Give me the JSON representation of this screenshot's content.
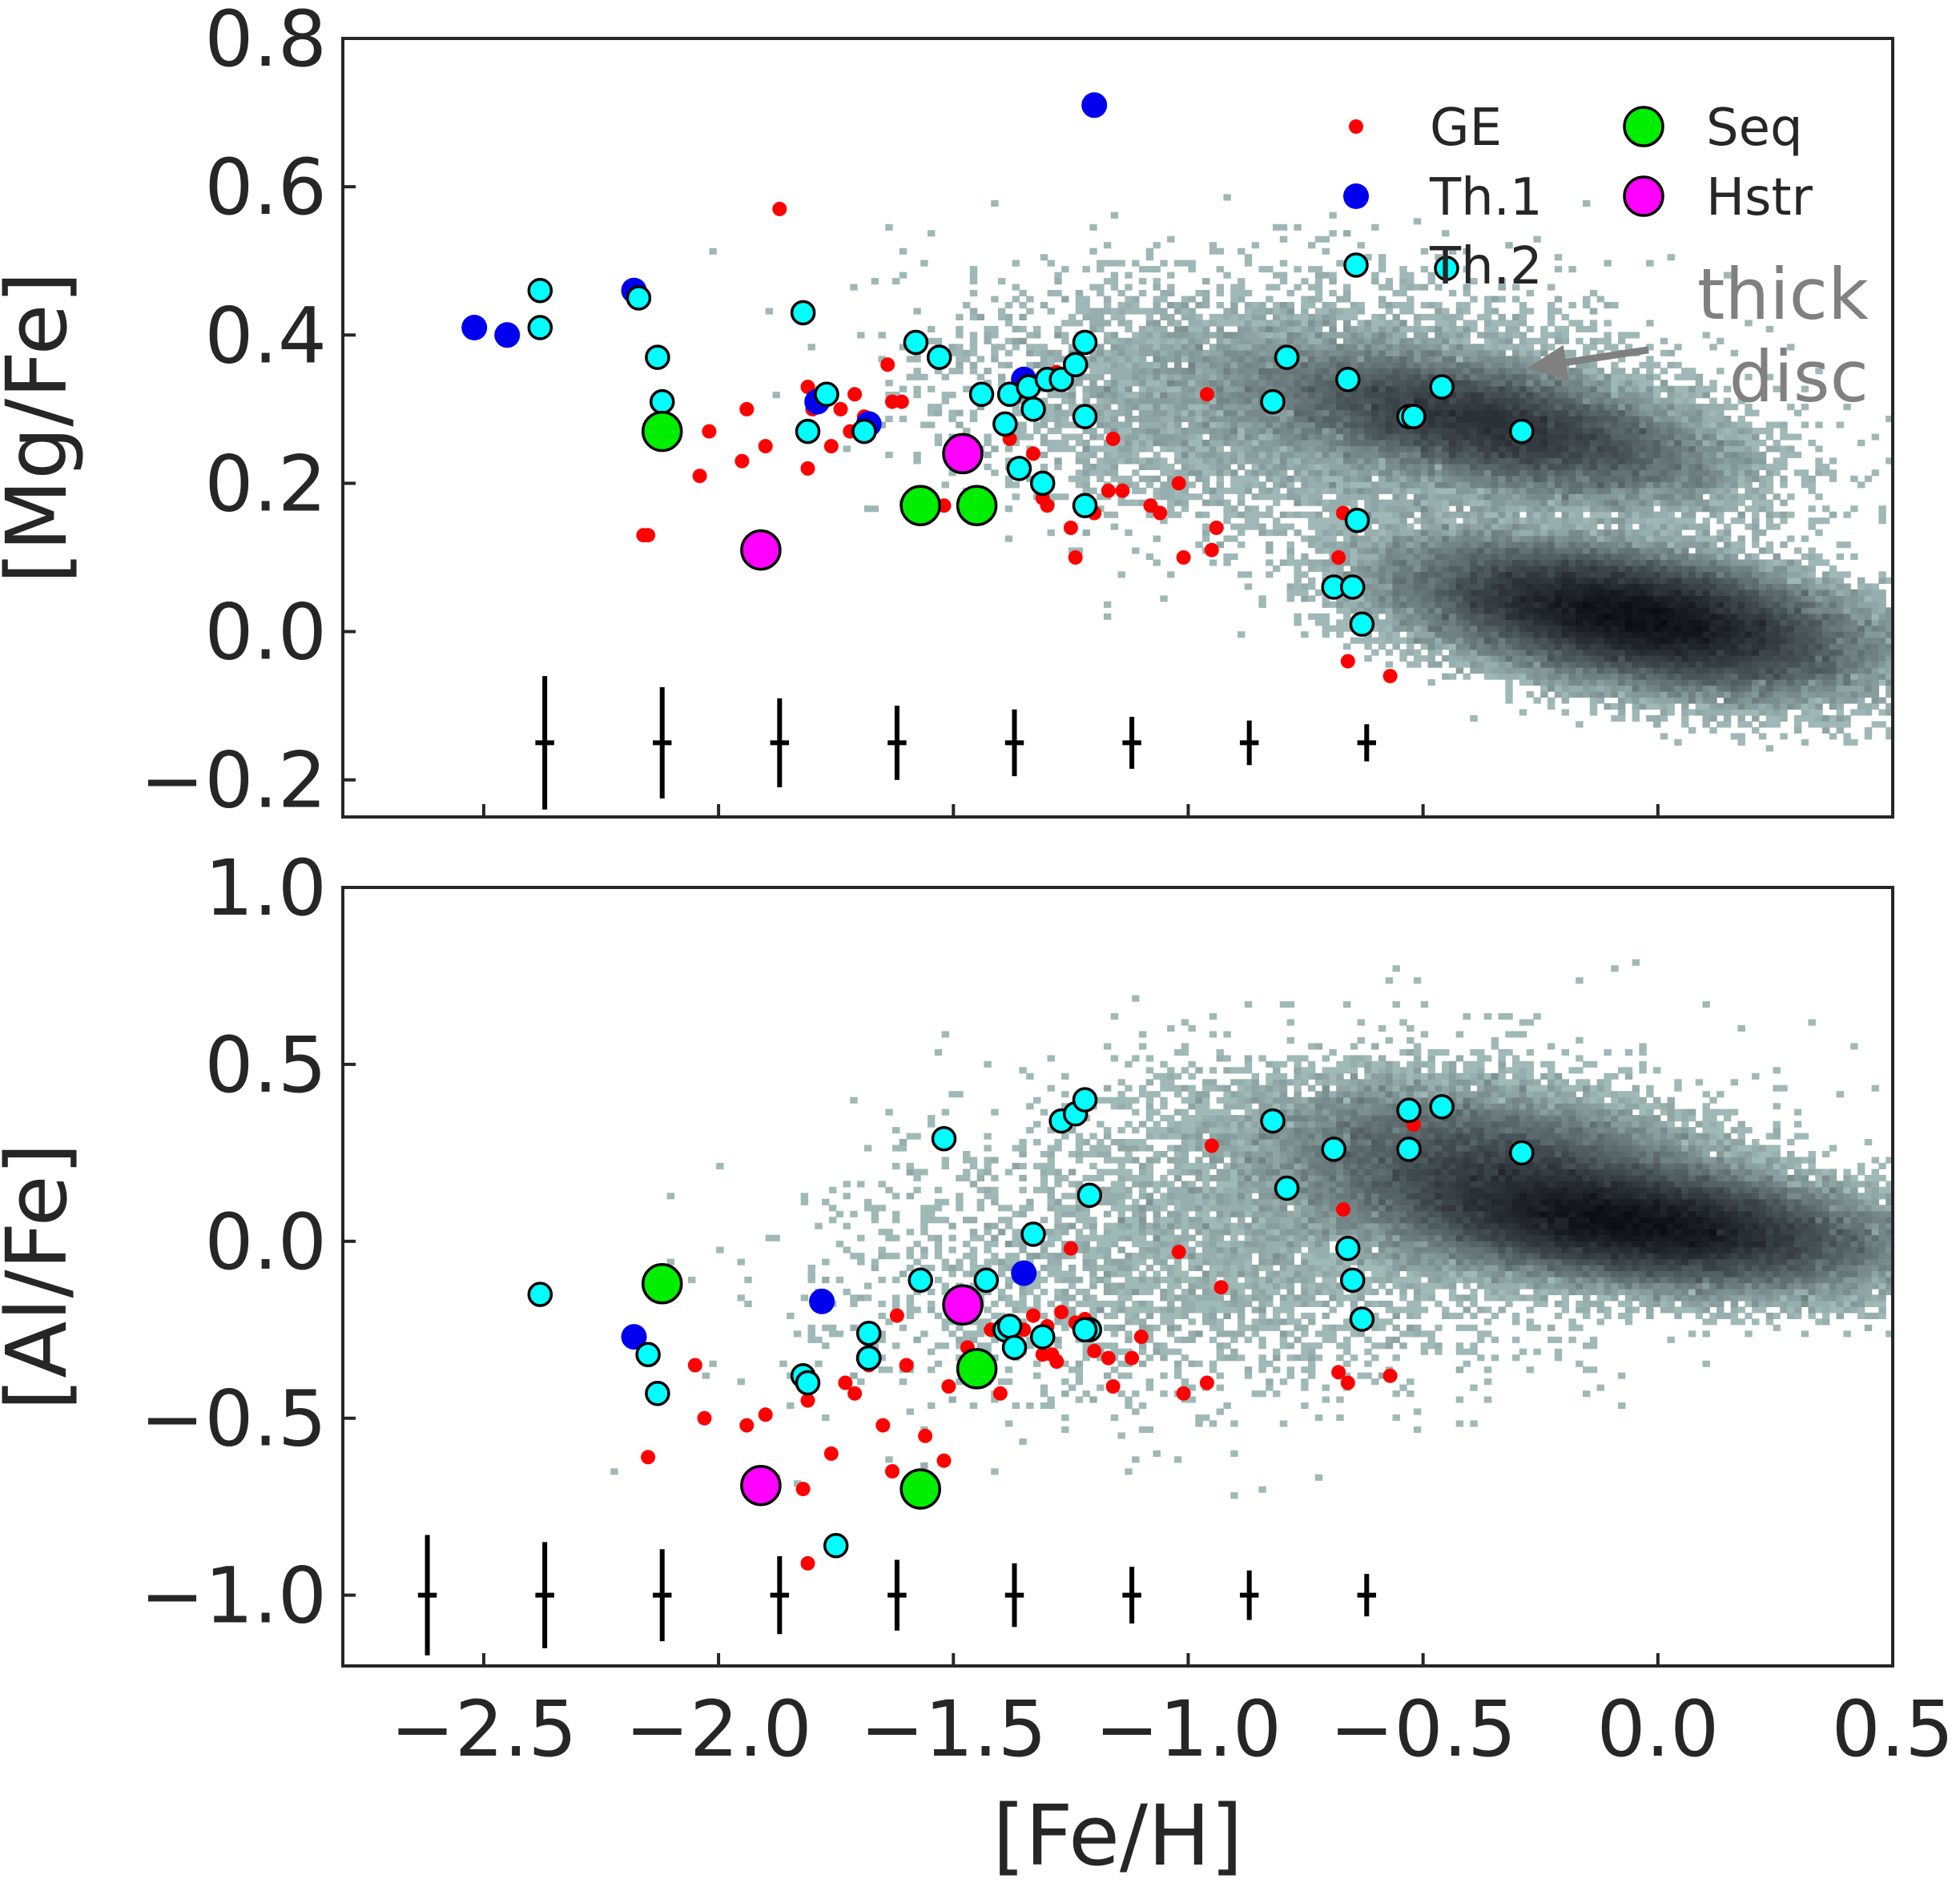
{
  "chart_data": [
    {
      "type": "scatter",
      "panel": "top",
      "xlabel": "[Fe/H]",
      "ylabel": "[Mg/Fe]",
      "xlim": [
        -2.8,
        0.5
      ],
      "ylim": [
        -0.25,
        0.8
      ],
      "xticks": [
        "−2.5",
        "−2.0",
        "−1.5",
        "−1.0",
        "−0.5",
        "0.0",
        "0.5"
      ],
      "yticks": [
        {
          "v": -0.2,
          "label": "−0.2"
        },
        {
          "v": 0.0,
          "label": "0.0"
        },
        {
          "v": 0.2,
          "label": "0.2"
        },
        {
          "v": 0.4,
          "label": "0.4"
        },
        {
          "v": 0.6,
          "label": "0.6"
        },
        {
          "v": 0.8,
          "label": "0.8"
        }
      ],
      "tick_labels_x_visible": false,
      "annotation": {
        "lines": [
          "thick",
          "disc"
        ],
        "arrow_to": [
          -0.28,
          0.355
        ],
        "arrow_from": [
          -0.02,
          0.38
        ]
      },
      "legend": {
        "placement": "top-right",
        "entries": [
          {
            "label": "GE",
            "series": "GE"
          },
          {
            "label": "Th.1",
            "series": "Th.1"
          },
          {
            "label": "Th.2",
            "series": "Th.2"
          },
          {
            "label": "Seq",
            "series": "Seq"
          },
          {
            "label": "Hstr",
            "series": "Hstr"
          }
        ]
      },
      "background_density": {
        "color_low": "#a9c4c2",
        "color_high": "#0a0a12",
        "components": [
          {
            "cx": -0.05,
            "cy": 0.02,
            "sx": 0.22,
            "sy": 0.045,
            "rho": -0.45,
            "w": 1.0
          },
          {
            "cx": -0.35,
            "cy": 0.28,
            "sx": 0.22,
            "sy": 0.045,
            "rho": -0.55,
            "w": 0.45
          },
          {
            "cx": -0.7,
            "cy": 0.3,
            "sx": 0.35,
            "sy": 0.08,
            "rho": -0.2,
            "w": 0.12
          }
        ]
      },
      "errorbars": [
        {
          "x": -2.37,
          "y": -0.15,
          "xerr": 0.02,
          "yerr": 0.09
        },
        {
          "x": -2.12,
          "y": -0.15,
          "xerr": 0.02,
          "yerr": 0.075
        },
        {
          "x": -1.87,
          "y": -0.15,
          "xerr": 0.02,
          "yerr": 0.06
        },
        {
          "x": -1.62,
          "y": -0.15,
          "xerr": 0.02,
          "yerr": 0.05
        },
        {
          "x": -1.37,
          "y": -0.15,
          "xerr": 0.02,
          "yerr": 0.045
        },
        {
          "x": -1.12,
          "y": -0.15,
          "xerr": 0.02,
          "yerr": 0.035
        },
        {
          "x": -0.87,
          "y": -0.15,
          "xerr": 0.02,
          "yerr": 0.03
        },
        {
          "x": -0.62,
          "y": -0.15,
          "xerr": 0.02,
          "yerr": 0.025
        }
      ],
      "series": [
        {
          "name": "GE",
          "color": "#ff0000",
          "edge": "none",
          "size": 9,
          "x": [
            -2.15,
            -2.16,
            -2.04,
            -2.02,
            -1.95,
            -1.94,
            -1.9,
            -1.87,
            -1.81,
            -1.81,
            -1.8,
            -1.76,
            -1.74,
            -1.72,
            -1.71,
            -1.69,
            -1.64,
            -1.63,
            -1.61,
            -1.52,
            -1.45,
            -1.38,
            -1.36,
            -1.35,
            -1.33,
            -1.31,
            -1.3,
            -1.28,
            -1.25,
            -1.24,
            -1.2,
            -1.17,
            -1.16,
            -1.14,
            -1.08,
            -1.06,
            -1.02,
            -1.01,
            -0.96,
            -0.95,
            -0.94,
            -0.68,
            -0.67,
            -0.66,
            -0.57
          ],
          "y": [
            0.13,
            0.13,
            0.21,
            0.27,
            0.23,
            0.3,
            0.25,
            0.57,
            0.22,
            0.33,
            0.3,
            0.25,
            0.3,
            0.27,
            0.32,
            0.29,
            0.36,
            0.31,
            0.31,
            0.17,
            0.17,
            0.26,
            0.22,
            0.22,
            0.24,
            0.18,
            0.17,
            0.35,
            0.14,
            0.1,
            0.16,
            0.19,
            0.26,
            0.19,
            0.17,
            0.16,
            0.2,
            0.1,
            0.32,
            0.11,
            0.14,
            0.1,
            0.16,
            -0.04,
            -0.06
          ]
        },
        {
          "name": "Th.1",
          "color": "#0000ee",
          "edge": "none",
          "size": 16,
          "x": [
            -2.52,
            -2.45,
            -2.18,
            -1.79,
            -1.68,
            -1.35,
            -1.2
          ],
          "y": [
            0.41,
            0.4,
            0.46,
            0.31,
            0.28,
            0.34,
            0.71
          ]
        },
        {
          "name": "Th.2",
          "color": "#00ffff",
          "edge": "#000000",
          "size": 14,
          "x": [
            -2.38,
            -2.38,
            -2.17,
            -2.13,
            -2.12,
            -1.82,
            -1.81,
            -1.77,
            -1.69,
            -1.58,
            -1.53,
            -1.44,
            -1.39,
            -1.38,
            -1.36,
            -1.34,
            -1.33,
            -1.31,
            -1.3,
            -1.27,
            -1.24,
            -1.22,
            -1.22,
            -1.22,
            -0.82,
            -0.79,
            -0.69,
            -0.66,
            -0.65,
            -0.64,
            -0.63,
            -0.53,
            -0.52,
            -0.46,
            -0.29,
            -0.45
          ],
          "y": [
            0.46,
            0.41,
            0.45,
            0.37,
            0.31,
            0.43,
            0.27,
            0.32,
            0.27,
            0.39,
            0.37,
            0.32,
            0.28,
            0.32,
            0.22,
            0.33,
            0.3,
            0.2,
            0.34,
            0.34,
            0.36,
            0.39,
            0.29,
            0.17,
            0.31,
            0.37,
            0.06,
            0.34,
            0.06,
            0.15,
            0.01,
            0.29,
            0.29,
            0.33,
            0.27,
            0.49
          ]
        },
        {
          "name": "Seq",
          "color": "#00ee00",
          "edge": "#000000",
          "size": 24,
          "x": [
            -2.12,
            -1.57,
            -1.45
          ],
          "y": [
            0.27,
            0.17,
            0.17
          ]
        },
        {
          "name": "Hstr",
          "color": "#ff00ff",
          "edge": "#000000",
          "size": 24,
          "x": [
            -1.91,
            -1.48
          ],
          "y": [
            0.11,
            0.24
          ]
        }
      ]
    },
    {
      "type": "scatter",
      "panel": "bottom",
      "xlabel": "[Fe/H]",
      "ylabel": "[Al/Fe]",
      "xlim": [
        -2.8,
        0.5
      ],
      "ylim": [
        -1.2,
        1.0
      ],
      "xticks": [
        "−2.5",
        "−2.0",
        "−1.5",
        "−1.0",
        "−0.5",
        "0.0",
        "0.5"
      ],
      "yticks": [
        {
          "v": -1.0,
          "label": "−1.0"
        },
        {
          "v": -0.5,
          "label": "−0.5"
        },
        {
          "v": 0.0,
          "label": "0.0"
        },
        {
          "v": 0.5,
          "label": "0.5"
        },
        {
          "v": 1.0,
          "label": "1.0"
        }
      ],
      "tick_labels_x_visible": true,
      "background_density": {
        "color_low": "#a9c4c2",
        "color_high": "#0a0a12",
        "components": [
          {
            "cx": -0.05,
            "cy": 0.05,
            "sx": 0.24,
            "sy": 0.08,
            "rho": -0.35,
            "w": 1.0
          },
          {
            "cx": -0.35,
            "cy": 0.22,
            "sx": 0.22,
            "sy": 0.1,
            "rho": -0.3,
            "w": 0.35
          },
          {
            "cx": -0.8,
            "cy": 0.05,
            "sx": 0.4,
            "sy": 0.22,
            "rho": 0.25,
            "w": 0.08
          }
        ]
      },
      "errorbars": [
        {
          "x": -2.62,
          "y": -1.0,
          "xerr": 0.02,
          "yerr": 0.17
        },
        {
          "x": -2.37,
          "y": -1.0,
          "xerr": 0.02,
          "yerr": 0.15
        },
        {
          "x": -2.12,
          "y": -1.0,
          "xerr": 0.02,
          "yerr": 0.13
        },
        {
          "x": -1.87,
          "y": -1.0,
          "xerr": 0.02,
          "yerr": 0.11
        },
        {
          "x": -1.62,
          "y": -1.0,
          "xerr": 0.02,
          "yerr": 0.1
        },
        {
          "x": -1.37,
          "y": -1.0,
          "xerr": 0.02,
          "yerr": 0.09
        },
        {
          "x": -1.12,
          "y": -1.0,
          "xerr": 0.02,
          "yerr": 0.08
        },
        {
          "x": -0.87,
          "y": -1.0,
          "xerr": 0.02,
          "yerr": 0.07
        },
        {
          "x": -0.62,
          "y": -1.0,
          "xerr": 0.02,
          "yerr": 0.06
        }
      ],
      "series": [
        {
          "name": "GE",
          "color": "#ff0000",
          "edge": "none",
          "size": 9,
          "x": [
            -2.15,
            -2.05,
            -2.03,
            -1.94,
            -1.9,
            -1.82,
            -1.81,
            -1.81,
            -1.76,
            -1.73,
            -1.71,
            -1.68,
            -1.65,
            -1.63,
            -1.62,
            -1.6,
            -1.56,
            -1.52,
            -1.51,
            -1.47,
            -1.42,
            -1.4,
            -1.37,
            -1.35,
            -1.33,
            -1.31,
            -1.3,
            -1.29,
            -1.28,
            -1.27,
            -1.25,
            -1.24,
            -1.22,
            -1.2,
            -1.17,
            -1.16,
            -1.12,
            -1.1,
            -1.02,
            -1.01,
            -0.96,
            -0.95,
            -0.93,
            -0.68,
            -0.67,
            -0.66,
            -0.57,
            -0.52
          ],
          "y": [
            -0.61,
            -0.35,
            -0.5,
            -0.52,
            -0.49,
            -0.7,
            -0.45,
            -0.91,
            -0.6,
            -0.4,
            -0.43,
            -0.35,
            -0.52,
            -0.65,
            -0.21,
            -0.35,
            -0.55,
            -0.62,
            -0.41,
            -0.3,
            -0.25,
            -0.43,
            -0.3,
            -0.25,
            -0.21,
            -0.32,
            -0.24,
            -0.32,
            -0.34,
            -0.2,
            -0.02,
            -0.23,
            -0.22,
            -0.31,
            -0.33,
            -0.41,
            -0.33,
            -0.27,
            -0.03,
            -0.43,
            -0.4,
            0.27,
            -0.13,
            -0.37,
            0.09,
            -0.4,
            -0.38,
            0.33
          ]
        },
        {
          "name": "Th.1",
          "color": "#0000ee",
          "edge": "none",
          "size": 16,
          "x": [
            -2.18,
            -1.78,
            -1.68,
            -1.35
          ],
          "y": [
            -0.27,
            -0.17,
            -0.33,
            -0.09
          ]
        },
        {
          "name": "Th.2",
          "color": "#00ffff",
          "edge": "#000000",
          "size": 14,
          "x": [
            -2.38,
            -2.15,
            -2.13,
            -1.82,
            -1.81,
            -1.75,
            -1.68,
            -1.68,
            -1.57,
            -1.52,
            -1.43,
            -1.39,
            -1.38,
            -1.37,
            -1.33,
            -1.31,
            -1.27,
            -1.24,
            -1.22,
            -1.21,
            -1.21,
            -1.22,
            -0.82,
            -0.79,
            -0.69,
            -0.66,
            -0.65,
            -0.63,
            -0.53,
            -0.53,
            -0.46,
            -0.29
          ],
          "y": [
            -0.15,
            -0.32,
            -0.43,
            -0.38,
            -0.4,
            -0.86,
            -0.26,
            -0.33,
            -0.11,
            0.29,
            -0.11,
            -0.25,
            -0.24,
            -0.3,
            0.02,
            -0.27,
            0.34,
            0.36,
            0.4,
            0.13,
            -0.25,
            -0.25,
            0.34,
            0.15,
            0.26,
            -0.02,
            -0.11,
            -0.22,
            0.37,
            0.26,
            0.38,
            0.25
          ]
        },
        {
          "name": "Seq",
          "color": "#00ee00",
          "edge": "#000000",
          "size": 24,
          "x": [
            -2.12,
            -1.57,
            -1.45
          ],
          "y": [
            -0.12,
            -0.7,
            -0.36
          ]
        },
        {
          "name": "Hstr",
          "color": "#ff00ff",
          "edge": "#000000",
          "size": 24,
          "x": [
            -1.91,
            -1.48
          ],
          "y": [
            -0.69,
            -0.18
          ]
        }
      ]
    }
  ]
}
